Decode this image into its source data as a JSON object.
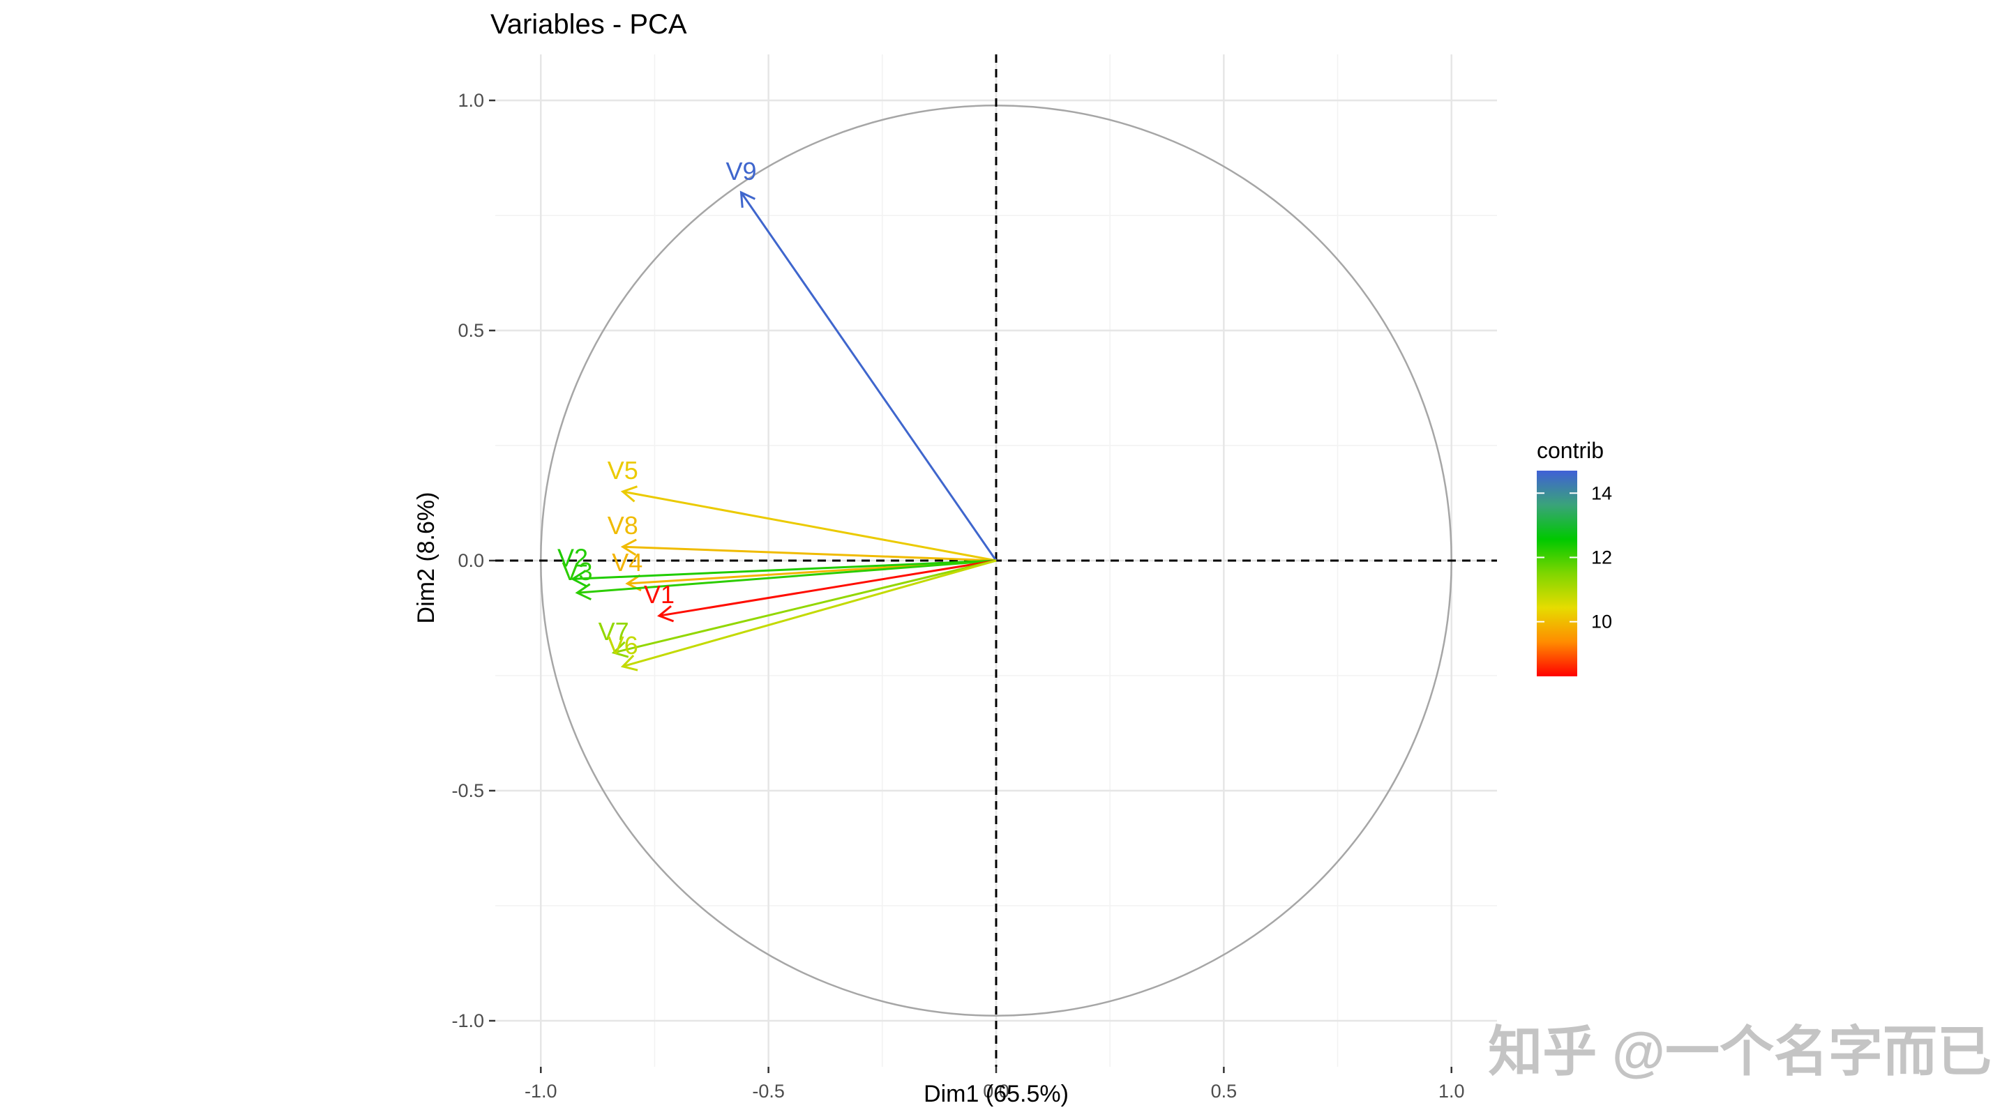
{
  "chart_data": {
    "type": "scatter",
    "title": "Variables - PCA",
    "xlabel": "Dim1 (65.5%)",
    "ylabel": "Dim2 (8.6%)",
    "xlim": [
      -1.1,
      1.1
    ],
    "ylim": [
      -1.1,
      1.1
    ],
    "x_ticks": [
      -1.0,
      -0.5,
      0.0,
      0.5,
      1.0
    ],
    "y_ticks": [
      -1.0,
      -0.5,
      0.0,
      0.5,
      1.0
    ],
    "x_tick_labels": [
      "-1.0",
      "-0.5",
      "0.0",
      "0.5",
      "1.0"
    ],
    "y_tick_labels": [
      "-1.0",
      "-0.5",
      "0.0",
      "0.5",
      "1.0"
    ],
    "grid": true,
    "unit_circle": true,
    "reference_lines": "dashed at x=0 and y=0",
    "points": [
      {
        "label": "V9",
        "x": -0.56,
        "y": 0.8,
        "contrib": 14.6
      },
      {
        "label": "V5",
        "x": -0.82,
        "y": 0.15,
        "contrib": 10.2
      },
      {
        "label": "V8",
        "x": -0.82,
        "y": 0.03,
        "contrib": 10.0
      },
      {
        "label": "V4",
        "x": -0.81,
        "y": -0.05,
        "contrib": 9.9
      },
      {
        "label": "V2",
        "x": -0.93,
        "y": -0.04,
        "contrib": 12.3
      },
      {
        "label": "V3",
        "x": -0.92,
        "y": -0.07,
        "contrib": 12.2
      },
      {
        "label": "V1",
        "x": -0.74,
        "y": -0.12,
        "contrib": 8.4
      },
      {
        "label": "V7",
        "x": -0.84,
        "y": -0.2,
        "contrib": 11.3
      },
      {
        "label": "V6",
        "x": -0.82,
        "y": -0.23,
        "contrib": 10.8
      }
    ],
    "legend": {
      "title": "contrib",
      "position": "right",
      "min": 8.3,
      "max": 14.7,
      "ticks": [
        10,
        12,
        14
      ],
      "tick_labels": [
        "10",
        "12",
        "14"
      ],
      "colors": [
        "#ff0000",
        "#ff8c00",
        "#e6dc00",
        "#7fd600",
        "#00c800",
        "#3aa37a",
        "#4060d6"
      ]
    }
  },
  "watermark": "知乎 @一个名字而已"
}
